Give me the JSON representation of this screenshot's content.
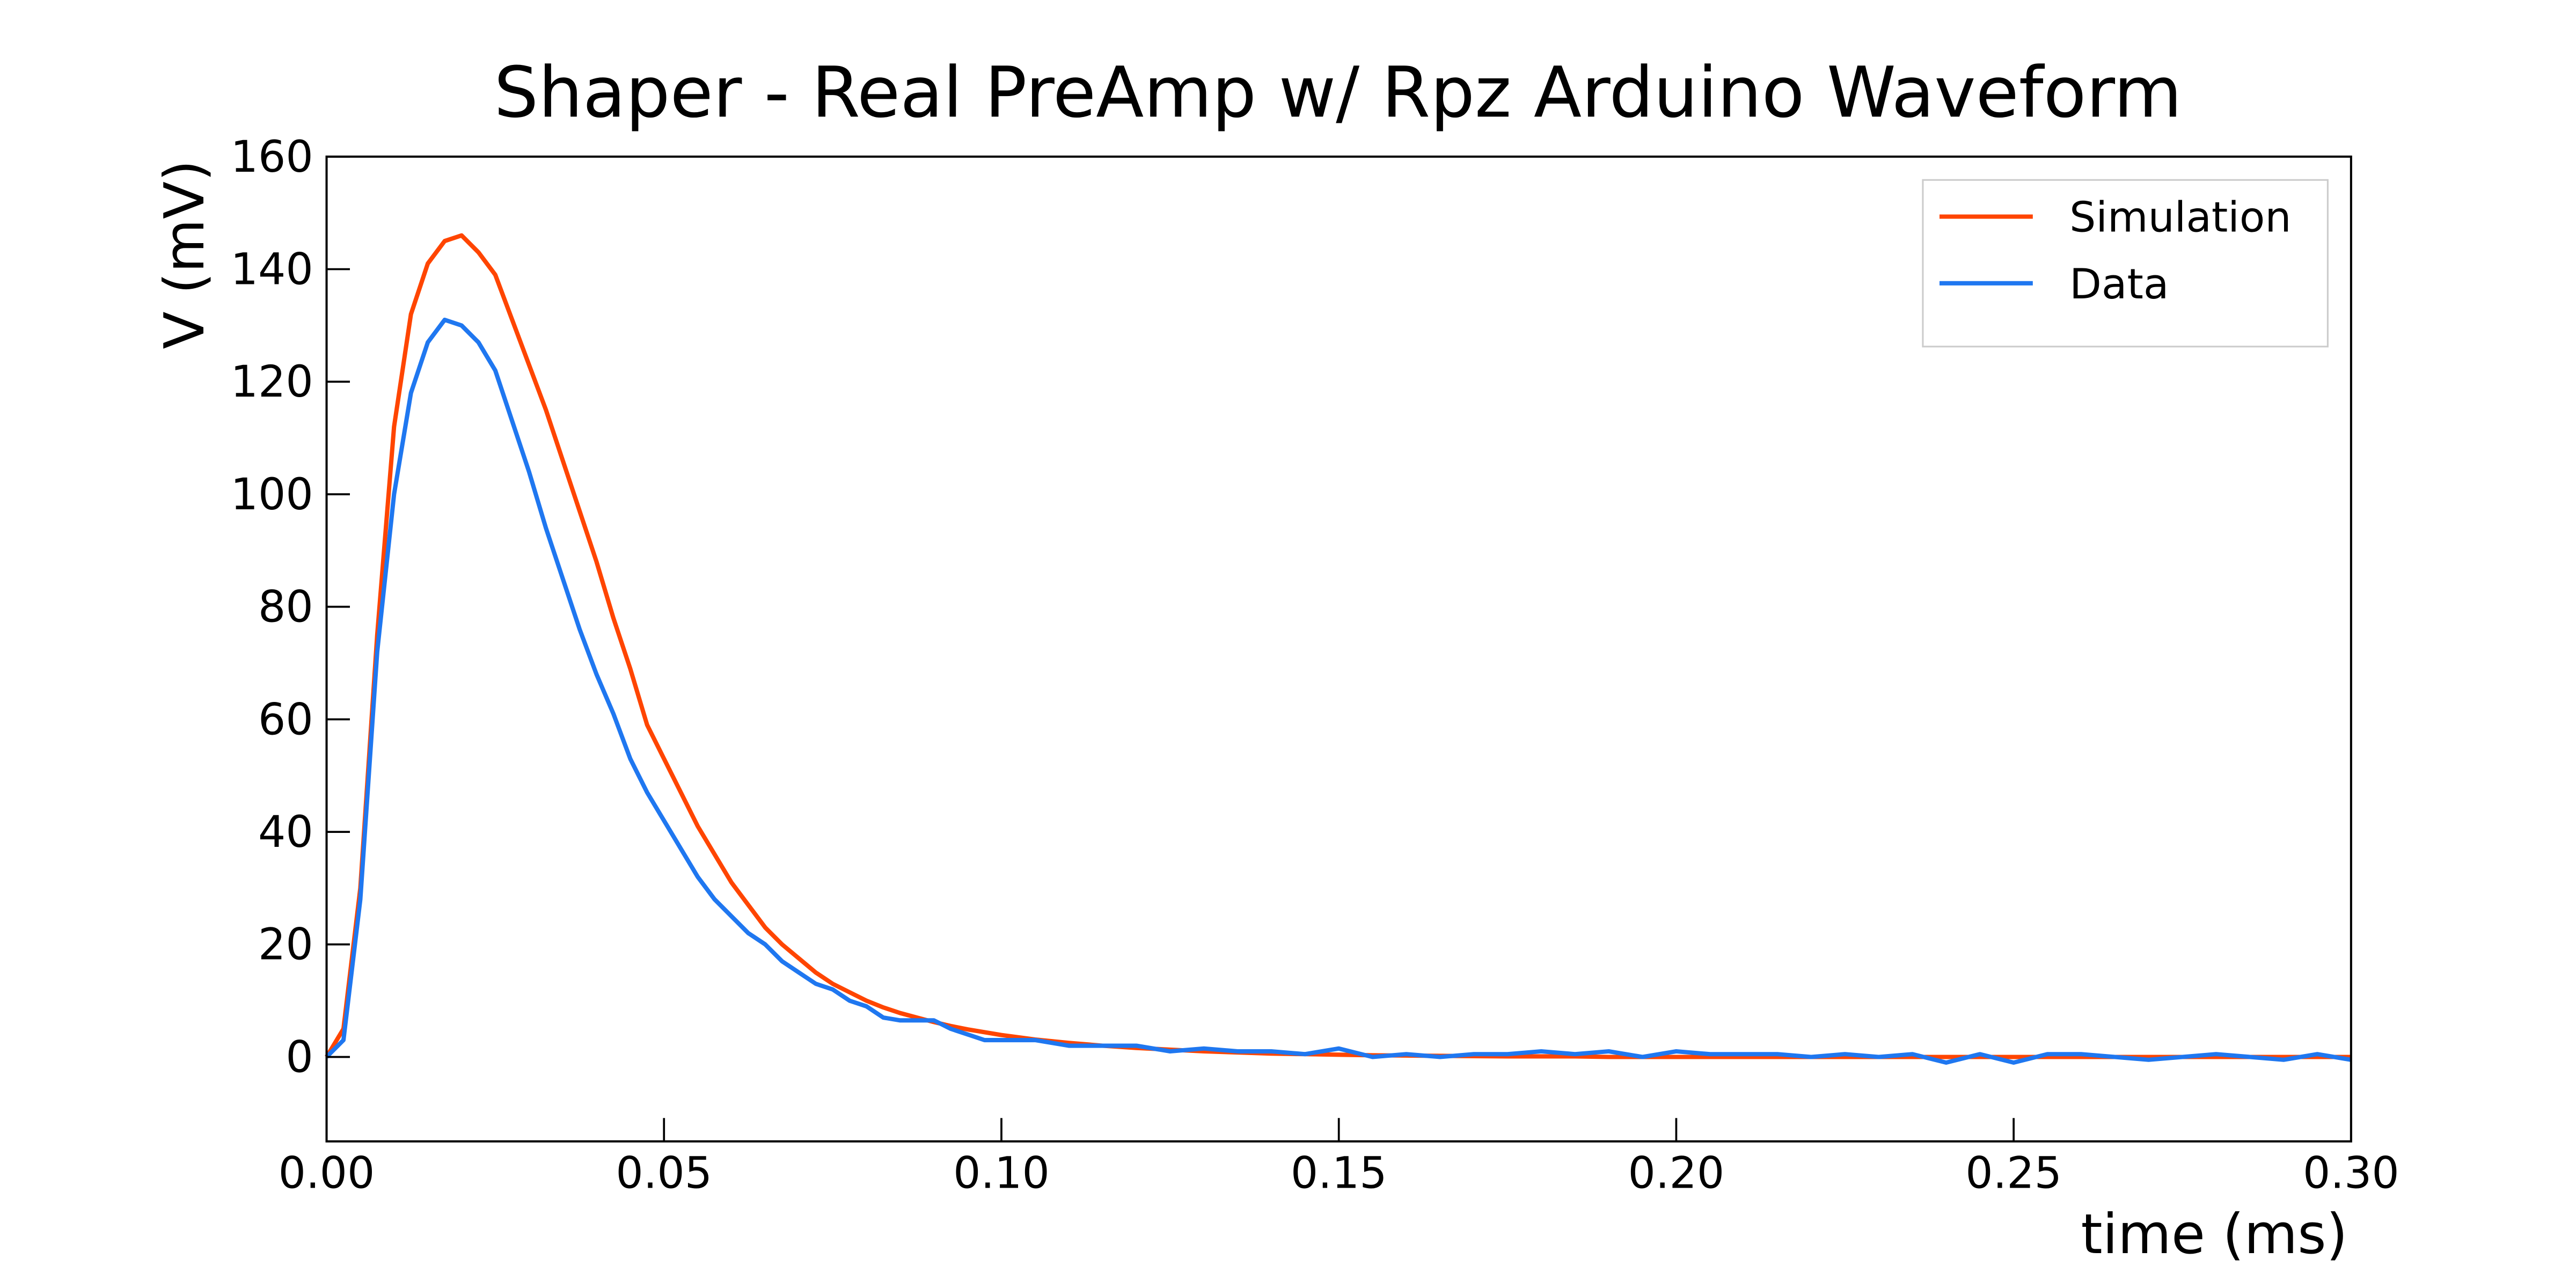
{
  "chart_data": {
    "type": "line",
    "title": "Shaper - Real PreAmp w/ Rpz Arduino Waveform",
    "xlabel": "time (ms)",
    "ylabel": "V (mV)",
    "x": [
      0,
      0.0025,
      0.005,
      0.0075,
      0.01,
      0.0125,
      0.015,
      0.0175,
      0.02,
      0.0225,
      0.025,
      0.0275,
      0.03,
      0.0325,
      0.035,
      0.0375,
      0.04,
      0.0425,
      0.045,
      0.0475,
      0.05,
      0.0525,
      0.055,
      0.0575,
      0.06,
      0.0625,
      0.065,
      0.0675,
      0.07,
      0.0725,
      0.075,
      0.0775,
      0.08,
      0.0825,
      0.085,
      0.0875,
      0.09,
      0.0925,
      0.095,
      0.0975,
      0.1,
      0.105,
      0.11,
      0.115,
      0.12,
      0.125,
      0.13,
      0.135,
      0.14,
      0.145,
      0.15,
      0.155,
      0.16,
      0.165,
      0.17,
      0.175,
      0.18,
      0.185,
      0.19,
      0.195,
      0.2,
      0.205,
      0.21,
      0.215,
      0.22,
      0.225,
      0.23,
      0.235,
      0.24,
      0.245,
      0.25,
      0.255,
      0.26,
      0.265,
      0.27,
      0.275,
      0.28,
      0.285,
      0.29,
      0.295,
      0.3
    ],
    "series": [
      {
        "name": "Simulation",
        "color": "#ff4500",
        "values": [
          0,
          5,
          30,
          75,
          112,
          132,
          141,
          145,
          146,
          143,
          139,
          131,
          123,
          115,
          106,
          97,
          88,
          78,
          69,
          59,
          53,
          47,
          41,
          36,
          31,
          27,
          23,
          20,
          17.5,
          15,
          13,
          11.5,
          10,
          8.8,
          7.8,
          7,
          6.2,
          5.5,
          4.9,
          4.4,
          3.9,
          3.1,
          2.5,
          2,
          1.6,
          1.3,
          1,
          0.8,
          0.6,
          0.5,
          0.4,
          0.3,
          0.25,
          0.2,
          0.15,
          0.1,
          0.1,
          0.1,
          0,
          0,
          0,
          0,
          0,
          0,
          0,
          0,
          0,
          0,
          0,
          0,
          0,
          0,
          0,
          0,
          0,
          0,
          0,
          0,
          0,
          0,
          0
        ]
      },
      {
        "name": "Data",
        "color": "#1f77f0",
        "values": [
          0,
          3,
          28,
          72,
          100,
          118,
          127,
          131,
          130,
          127,
          122,
          113,
          104,
          94,
          85,
          76,
          68,
          61,
          53,
          47,
          42,
          37,
          32,
          28,
          25,
          22,
          20,
          17,
          15,
          13,
          12,
          10,
          9,
          7,
          6.5,
          6.5,
          6.5,
          5,
          4,
          3,
          3,
          3,
          2,
          2,
          2,
          1,
          1.5,
          1,
          1,
          0.5,
          1.5,
          0,
          0.5,
          0,
          0.5,
          0.5,
          1,
          0.5,
          1,
          0,
          1,
          0.5,
          0.5,
          0.5,
          0,
          0.5,
          0,
          0.5,
          -1,
          0.5,
          -1,
          0.5,
          0.5,
          0,
          -0.5,
          0,
          0.5,
          0,
          -0.5,
          0.5,
          -0.5
        ]
      }
    ],
    "xlim": [
      0,
      0.3
    ],
    "xticks": [
      {
        "value": 0,
        "label": "0.00"
      },
      {
        "value": 0.05,
        "label": "0.05"
      },
      {
        "value": 0.1,
        "label": "0.10"
      },
      {
        "value": 0.15,
        "label": "0.15"
      },
      {
        "value": 0.2,
        "label": "0.20"
      },
      {
        "value": 0.25,
        "label": "0.25"
      },
      {
        "value": 0.3,
        "label": "0.30"
      }
    ],
    "ylim": [
      -15,
      160
    ],
    "yticks": [
      0,
      20,
      40,
      60,
      80,
      100,
      120,
      140,
      160
    ],
    "grid": false,
    "legend": "upper right"
  }
}
